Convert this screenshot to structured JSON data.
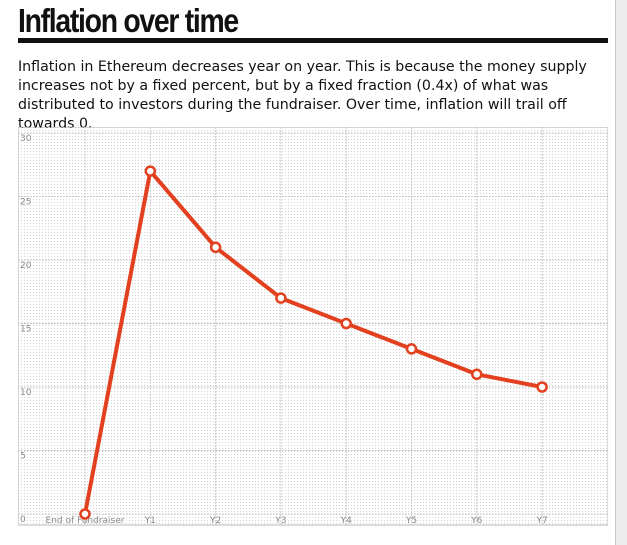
{
  "page": {
    "title": "Inflation over time",
    "description": "Inflation in Ethereum decreases year on year. This is because the money supply increases not by a fixed percent, but by a fixed fraction (0.4x) of what was distributed to investors during the fundraiser. Over time, inflation will trail off towards 0."
  },
  "colors": {
    "line": "#e2401e",
    "title_rule": "#111111",
    "grid": "#c8c8c8"
  },
  "chart_data": {
    "type": "line",
    "title": "",
    "xlabel": "",
    "ylabel": "",
    "categories": [
      "End of Fundraiser",
      "Y1",
      "Y2",
      "Y3",
      "Y4",
      "Y5",
      "Y6",
      "Y7"
    ],
    "series": [
      {
        "values": [
          0,
          27,
          21,
          17,
          15,
          13,
          11,
          10
        ]
      }
    ],
    "ylim": [
      0,
      30
    ],
    "yticks": [
      0,
      5,
      10,
      15,
      20,
      25,
      30
    ],
    "grid": true,
    "markers": "hollow-circle",
    "legend": "none"
  }
}
